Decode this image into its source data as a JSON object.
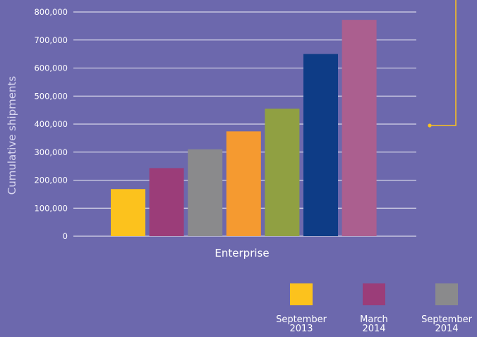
{
  "chart_data": {
    "type": "bar",
    "title": "",
    "xlabel": "Enterprise",
    "ylabel": "Cumulative shipments",
    "ylim": [
      0,
      800000
    ],
    "yticks": [
      0,
      100000,
      200000,
      300000,
      400000,
      500000,
      600000,
      700000,
      800000
    ],
    "ytick_labels": [
      "0",
      "100,000",
      "200,000",
      "300,000",
      "400,000",
      "500,000",
      "600,000",
      "700,000",
      "800,000"
    ],
    "grid": true,
    "legend_position": "bottom-right",
    "categories": [
      "Enterprise"
    ],
    "series": [
      {
        "name": "September 2013",
        "label_lines": [
          "September",
          "2013"
        ],
        "color": "#fcc21d",
        "values": [
          168000
        ]
      },
      {
        "name": "March 2014",
        "label_lines": [
          "March",
          "2014"
        ],
        "color": "#9b3d79",
        "values": [
          243000
        ]
      },
      {
        "name": "September 2014",
        "label_lines": [
          "September",
          "2014"
        ],
        "color": "#8a8a8c",
        "values": [
          310000
        ]
      },
      {
        "name": "",
        "color": "#f59a30",
        "values": [
          374000
        ]
      },
      {
        "name": "",
        "color": "#90a042",
        "values": [
          455000
        ]
      },
      {
        "name": "",
        "color": "#0e3c86",
        "values": [
          650000
        ]
      },
      {
        "name": "",
        "color": "#ab5f8f",
        "values": [
          772000
        ]
      }
    ]
  }
}
